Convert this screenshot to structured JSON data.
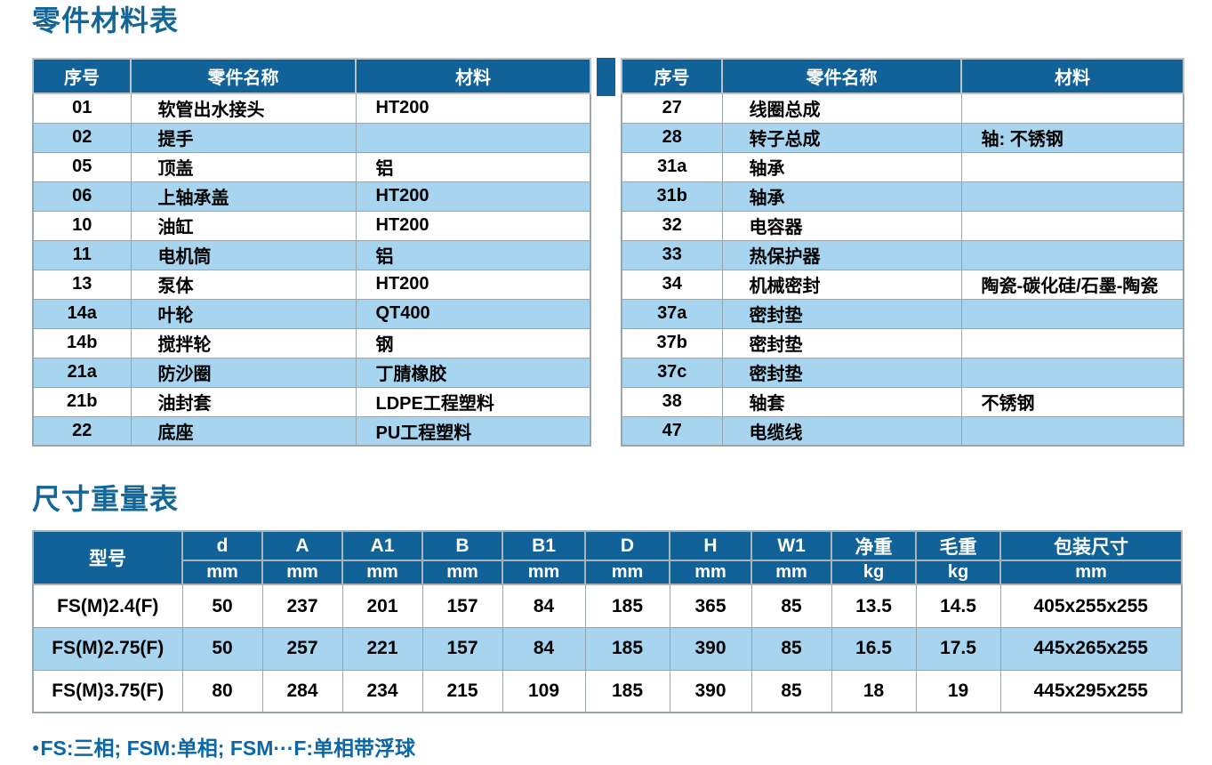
{
  "sections": {
    "parts": {
      "title": "零件材料表"
    },
    "dims": {
      "title": "尺寸重量表",
      "footnote_bullet": "●",
      "footnote_text": "FS:三相; FSM:单相; FSM···F:单相带浮球"
    }
  },
  "colors": {
    "header_blue": "#106299",
    "stripe_blue": "#a7d4ee",
    "title_blue": "#136695",
    "footnote_blue": "#0c67a5",
    "border_gray": "#9aa4ab"
  },
  "parts_table": {
    "headers": [
      "序号",
      "零件名称",
      "材料"
    ],
    "left_rows": [
      [
        "01",
        "软管出水接头",
        "HT200"
      ],
      [
        "02",
        "提手",
        ""
      ],
      [
        "05",
        "顶盖",
        "铝"
      ],
      [
        "06",
        "上轴承盖",
        "HT200"
      ],
      [
        "10",
        "油缸",
        "HT200"
      ],
      [
        "11",
        "电机筒",
        "铝"
      ],
      [
        "13",
        "泵体",
        "HT200"
      ],
      [
        "14a",
        "叶轮",
        "QT400"
      ],
      [
        "14b",
        "搅拌轮",
        "钢"
      ],
      [
        "21a",
        "防沙圈",
        "丁腈橡胶"
      ],
      [
        "21b",
        "油封套",
        "LDPE工程塑料"
      ],
      [
        "22",
        "底座",
        "PU工程塑料"
      ]
    ],
    "right_rows": [
      [
        "27",
        "线圈总成",
        ""
      ],
      [
        "28",
        "转子总成",
        "轴: 不锈钢"
      ],
      [
        "31a",
        "轴承",
        ""
      ],
      [
        "31b",
        "轴承",
        ""
      ],
      [
        "32",
        "电容器",
        ""
      ],
      [
        "33",
        "热保护器",
        ""
      ],
      [
        "34",
        "机械密封",
        "陶瓷-碳化硅/石墨-陶瓷"
      ],
      [
        "37a",
        "密封垫",
        ""
      ],
      [
        "37b",
        "密封垫",
        ""
      ],
      [
        "37c",
        "密封垫",
        ""
      ],
      [
        "38",
        "轴套",
        "不锈钢"
      ],
      [
        "47",
        "电缆线",
        ""
      ]
    ]
  },
  "dimension_table": {
    "model_header": "型号",
    "columns": [
      {
        "label": "d",
        "unit": "mm"
      },
      {
        "label": "A",
        "unit": "mm"
      },
      {
        "label": "A1",
        "unit": "mm"
      },
      {
        "label": "B",
        "unit": "mm"
      },
      {
        "label": "B1",
        "unit": "mm"
      },
      {
        "label": "D",
        "unit": "mm"
      },
      {
        "label": "H",
        "unit": "mm"
      },
      {
        "label": "W1",
        "unit": "mm"
      },
      {
        "label": "净重",
        "unit": "kg"
      },
      {
        "label": "毛重",
        "unit": "kg"
      },
      {
        "label": "包装尺寸",
        "unit": "mm"
      }
    ],
    "rows": [
      {
        "model": "FS(M)2.4(F)",
        "values": [
          "50",
          "237",
          "201",
          "157",
          "84",
          "185",
          "365",
          "85",
          "13.5",
          "14.5",
          "405x255x255"
        ]
      },
      {
        "model": "FS(M)2.75(F)",
        "values": [
          "50",
          "257",
          "221",
          "157",
          "84",
          "185",
          "390",
          "85",
          "16.5",
          "17.5",
          "445x265x255"
        ]
      },
      {
        "model": "FS(M)3.75(F)",
        "values": [
          "80",
          "284",
          "234",
          "215",
          "109",
          "185",
          "390",
          "85",
          "18",
          "19",
          "445x295x255"
        ]
      }
    ]
  }
}
